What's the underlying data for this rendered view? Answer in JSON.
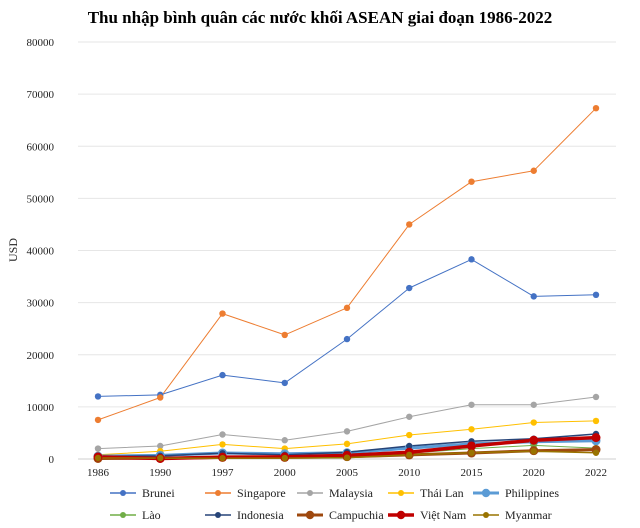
{
  "chart_data": {
    "type": "line",
    "title": "Thu nhập bình quân các nước khối ASEAN giai đoạn 1986-2022",
    "ylabel": "USD",
    "xlabel": "",
    "ylim": [
      0,
      80000
    ],
    "yticks": [
      0,
      10000,
      20000,
      30000,
      40000,
      50000,
      60000,
      70000,
      80000
    ],
    "categories": [
      "1986",
      "1990",
      "1997",
      "2000",
      "2005",
      "2010",
      "2015",
      "2020",
      "2022"
    ],
    "grid": true,
    "legend": "bottom",
    "series": [
      {
        "name": "Brunei",
        "color": "#4472C4",
        "width": 1,
        "values": [
          12000,
          12300,
          16100,
          14600,
          23000,
          32800,
          38300,
          31200,
          31500
        ]
      },
      {
        "name": "Singapore",
        "color": "#ED7D31",
        "width": 1,
        "values": [
          7500,
          11800,
          27900,
          23800,
          29000,
          45000,
          53200,
          55300,
          67300
        ]
      },
      {
        "name": "Malaysia",
        "color": "#A5A5A5",
        "width": 1,
        "values": [
          2000,
          2500,
          4700,
          3600,
          5300,
          8100,
          10400,
          10400,
          11900
        ]
      },
      {
        "name": "Thái Lan",
        "color": "#FFC000",
        "width": 1,
        "values": [
          800,
          1500,
          2800,
          2000,
          2900,
          4600,
          5700,
          7000,
          7300
        ]
      },
      {
        "name": "Philippines",
        "color": "#5B9BD5",
        "width": 3,
        "values": [
          550,
          700,
          1150,
          1000,
          1200,
          2100,
          2900,
          3300,
          3500
        ]
      },
      {
        "name": "Lào",
        "color": "#70AD47",
        "width": 1,
        "values": [
          350,
          220,
          350,
          300,
          480,
          1100,
          2000,
          2600,
          2100
        ]
      },
      {
        "name": "Indonesia",
        "color": "#264478",
        "width": 1.5,
        "values": [
          500,
          600,
          1100,
          800,
          1300,
          2500,
          3400,
          3900,
          4800
        ]
      },
      {
        "name": "Campuchia",
        "color": "#9E480E",
        "width": 3,
        "values": [
          100,
          130,
          300,
          300,
          450,
          780,
          1150,
          1600,
          1800
        ]
      },
      {
        "name": "Việt Nam",
        "color": "#C00000",
        "width": 3.5,
        "values": [
          400,
          100,
          360,
          400,
          700,
          1300,
          2500,
          3600,
          4100
        ]
      },
      {
        "name": "Myanmar",
        "color": "#997300",
        "width": 1.5,
        "values": [
          200,
          180,
          160,
          180,
          260,
          800,
          1200,
          1500,
          1200
        ]
      }
    ]
  }
}
